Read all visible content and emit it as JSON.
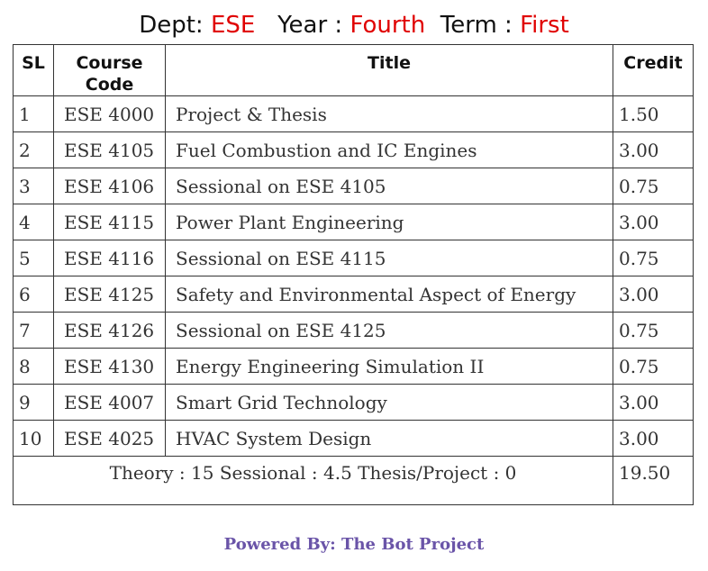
{
  "header": {
    "dept_label": "Dept:",
    "dept_value": "ESE",
    "year_label": "Year :",
    "year_value": "Fourth",
    "term_label": "Term :",
    "term_value": "First",
    "accent_color": "#e00000"
  },
  "table": {
    "columns": {
      "sl": "SL",
      "code_line1": "Course",
      "code_line2": "Code",
      "title": "Title",
      "credit": "Credit"
    },
    "rows": [
      {
        "sl": "1",
        "code": "ESE 4000",
        "title": "Project & Thesis",
        "credit": "1.50"
      },
      {
        "sl": "2",
        "code": "ESE 4105",
        "title": "Fuel Combustion and IC Engines",
        "credit": "3.00"
      },
      {
        "sl": "3",
        "code": "ESE 4106",
        "title": "Sessional on ESE 4105",
        "credit": "0.75"
      },
      {
        "sl": "4",
        "code": "ESE 4115",
        "title": "Power Plant Engineering",
        "credit": "3.00"
      },
      {
        "sl": "5",
        "code": "ESE 4116",
        "title": "Sessional on ESE 4115",
        "credit": "0.75"
      },
      {
        "sl": "6",
        "code": "ESE 4125",
        "title": "Safety and Environmental Aspect of Energy",
        "credit": "3.00"
      },
      {
        "sl": "7",
        "code": "ESE 4126",
        "title": "Sessional on ESE 4125",
        "credit": "0.75"
      },
      {
        "sl": "8",
        "code": "ESE 4130",
        "title": "Energy Engineering Simulation II",
        "credit": "0.75"
      },
      {
        "sl": "9",
        "code": "ESE 4007",
        "title": "Smart Grid Technology",
        "credit": "3.00"
      },
      {
        "sl": "10",
        "code": "ESE 4025",
        "title": "HVAC System Design",
        "credit": "3.00"
      }
    ],
    "summary": {
      "theory": "Theory : 15",
      "sessional": "Sessional : 4.5",
      "thesis": "Thesis/Project : 0",
      "total_credit": "19.50"
    }
  },
  "footer": {
    "text": "Powered By: The Bot Project",
    "color": "#6a54a8"
  }
}
